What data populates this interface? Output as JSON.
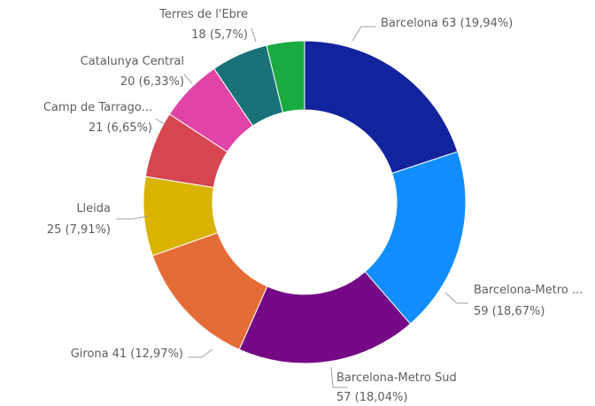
{
  "chart_data": {
    "type": "donut",
    "categories": [
      "Barcelona",
      "Barcelona-Metro ...",
      "Barcelona-Metro Sud",
      "Girona",
      "Lleida",
      "Camp de Tarrago...",
      "Catalunya Central",
      "Terres de l'Ebre",
      null
    ],
    "values": [
      63,
      59,
      57,
      41,
      25,
      21,
      20,
      18,
      12
    ],
    "value_labels": [
      "63 (19,94%)",
      "59 (18,67%)",
      "57 (18,04%)",
      "41 (12,97%)",
      "25 (7,91%)",
      "21 (6,65%)",
      "20 (6,33%)",
      "18 (5,7%)",
      null
    ],
    "colors": [
      "#12239e",
      "#118dff",
      "#750985",
      "#e66c37",
      "#d9b300",
      "#d64550",
      "#e044a7",
      "#197278",
      "#1aab40"
    ]
  }
}
